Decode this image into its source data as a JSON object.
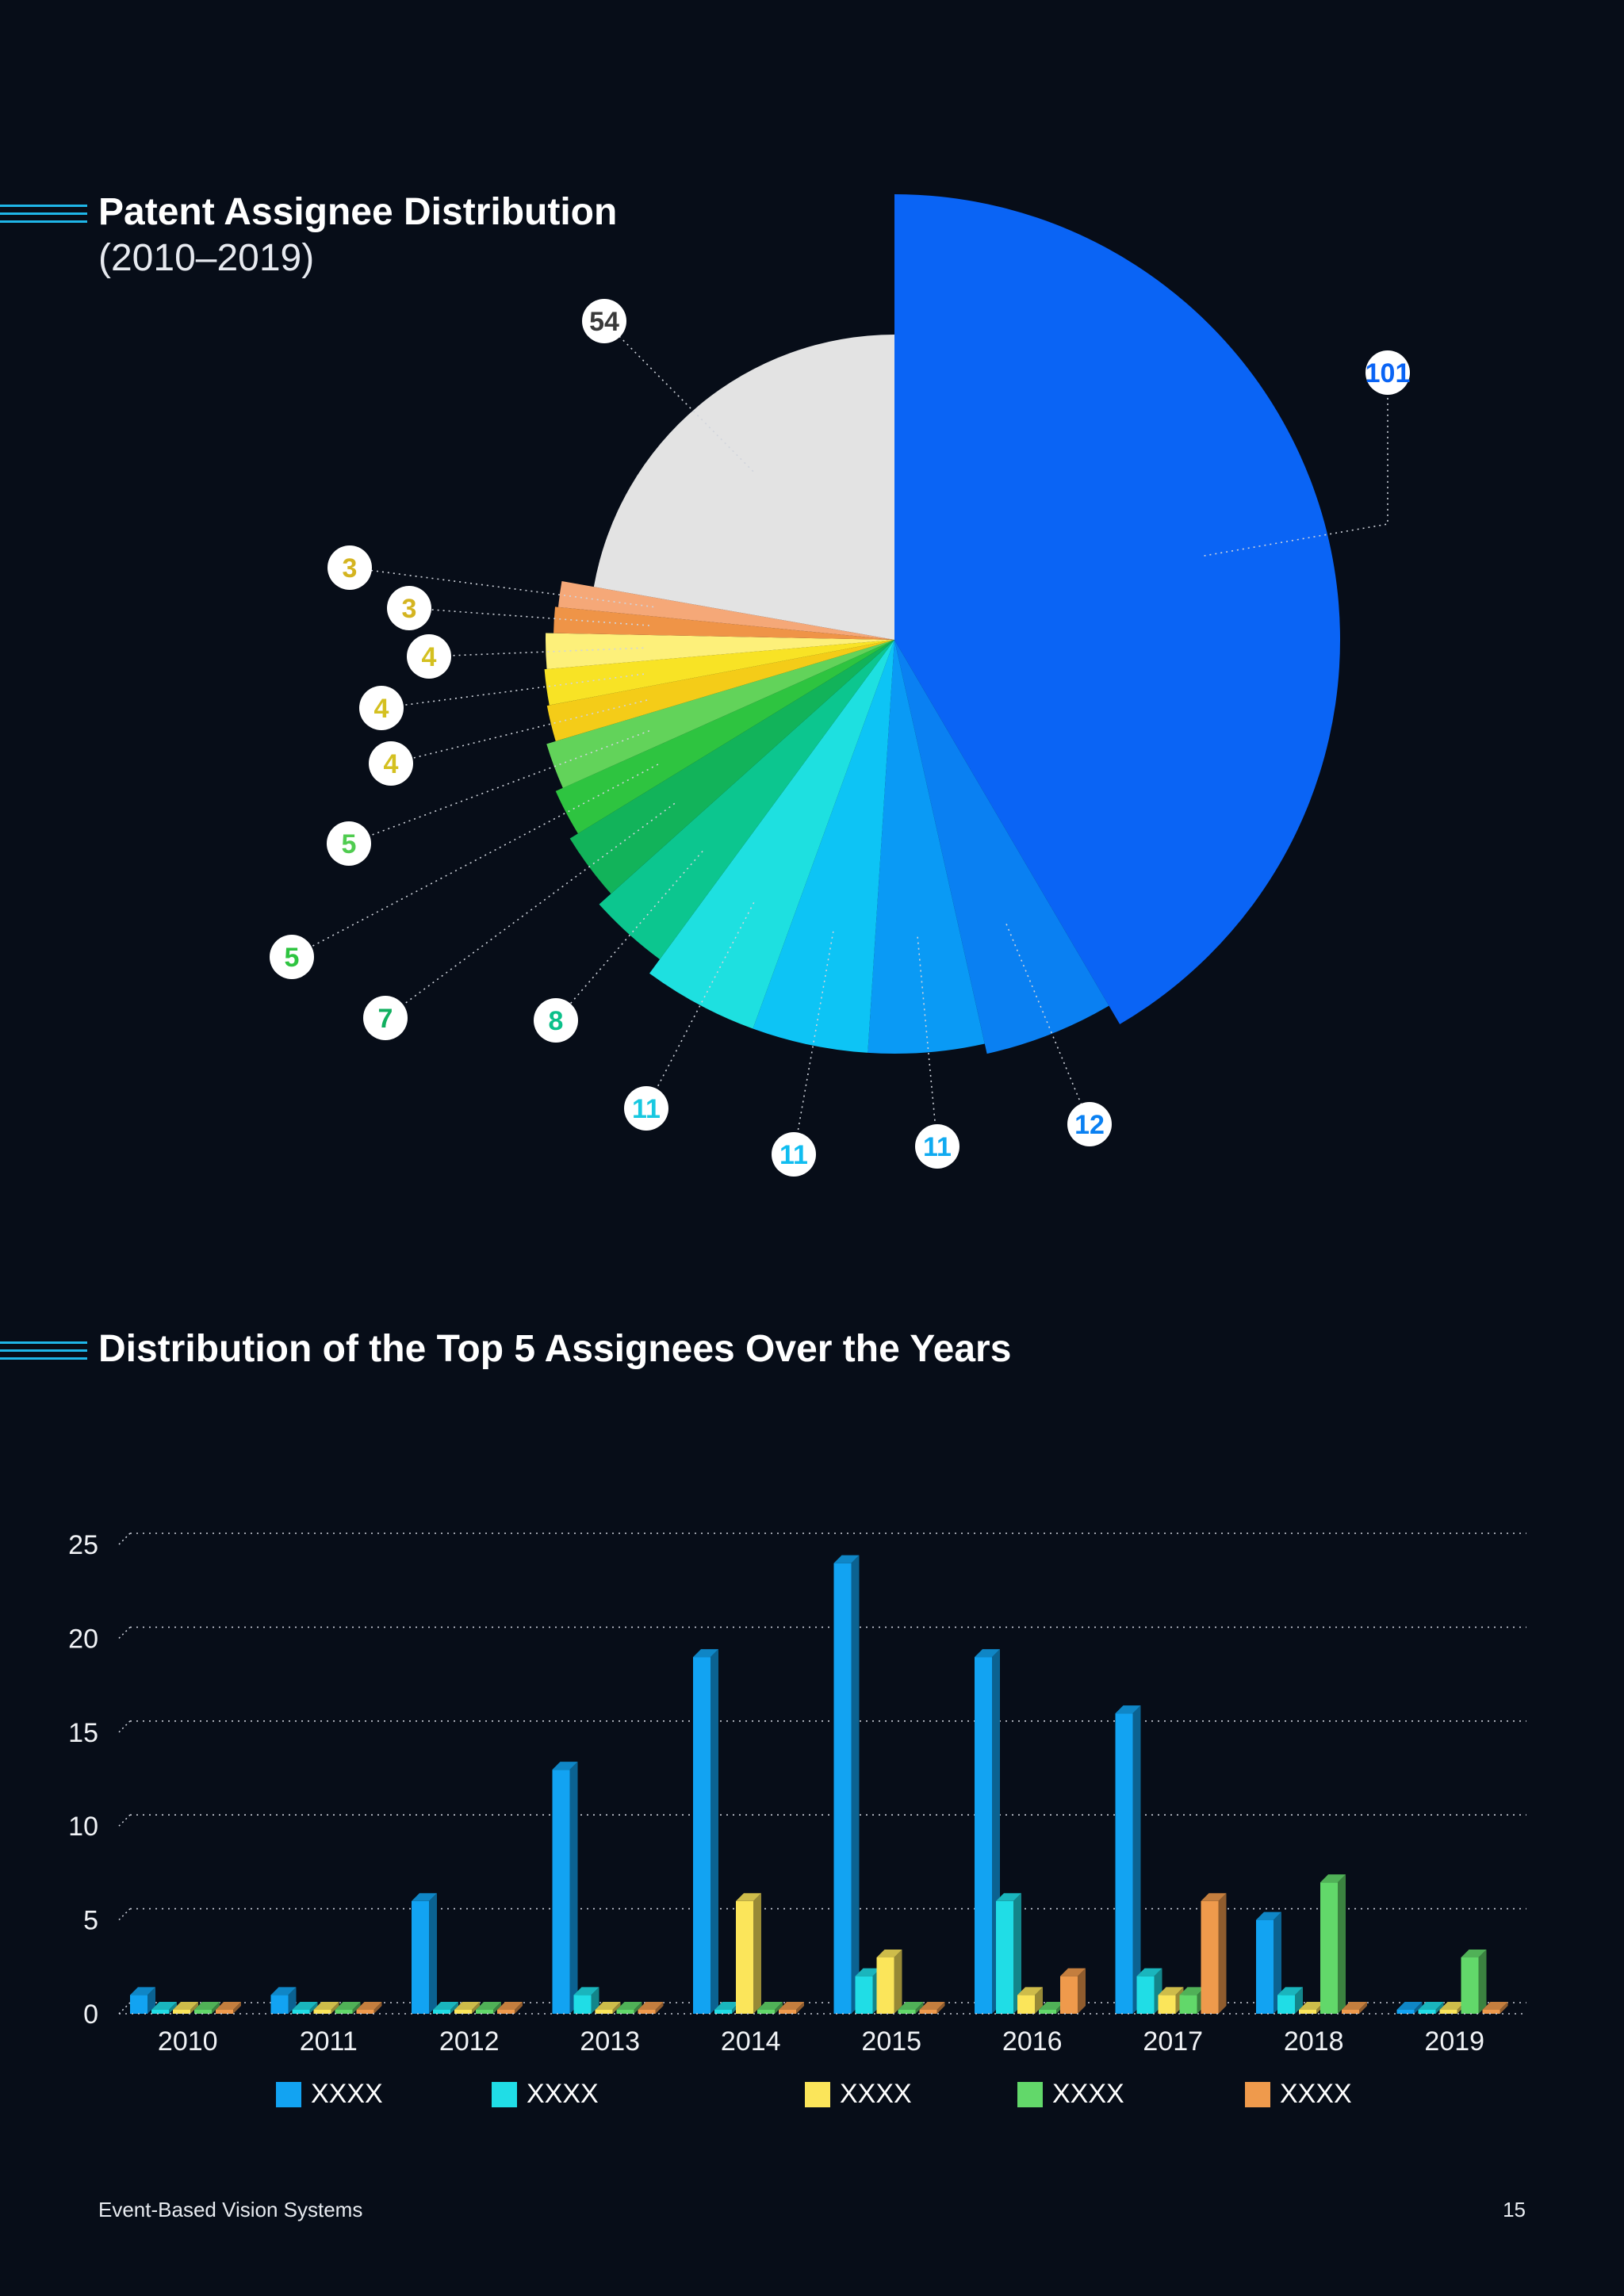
{
  "pie_section": {
    "title": "Patent Assignee Distribution",
    "subtitle": "(2010–2019)"
  },
  "bar_section": {
    "title": "Distribution of the Top 5 Assignees Over the Years"
  },
  "footer": {
    "left": "Event-Based Vision Systems",
    "right": "15"
  },
  "chart_data": [
    {
      "type": "pie",
      "title": "Patent Assignee Distribution",
      "slices": [
        {
          "label": "101",
          "value": 101,
          "color": "#0a64f5",
          "label_color": "#0a64f5"
        },
        {
          "label": "12",
          "value": 12,
          "color": "#0a80f2",
          "label_color": "#0a80f2"
        },
        {
          "label": "11",
          "value": 11,
          "color": "#0a9af5",
          "label_color": "#10aaf0"
        },
        {
          "label": "11",
          "value": 11,
          "color": "#0dc4f5",
          "label_color": "#10bdf0"
        },
        {
          "label": "11",
          "value": 11,
          "color": "#1ee0e0",
          "label_color": "#18c8e0"
        },
        {
          "label": "8",
          "value": 8,
          "color": "#0cc68f",
          "label_color": "#0cc08a"
        },
        {
          "label": "7",
          "value": 7,
          "color": "#12b35a",
          "label_color": "#12b060"
        },
        {
          "label": "5",
          "value": 5,
          "color": "#2ec440",
          "label_color": "#2ec440"
        },
        {
          "label": "5",
          "value": 5,
          "color": "#62d35a",
          "label_color": "#50cc50"
        },
        {
          "label": "4",
          "value": 4,
          "color": "#f4cc18",
          "label_color": "#d4c020"
        },
        {
          "label": "4",
          "value": 4,
          "color": "#f8e325",
          "label_color": "#d4c020"
        },
        {
          "label": "4",
          "value": 4,
          "color": "#fdf07a",
          "label_color": "#d4c020"
        },
        {
          "label": "3",
          "value": 3,
          "color": "#ef9447",
          "label_color": "#d4b420"
        },
        {
          "label": "3",
          "value": 3,
          "color": "#f5a878",
          "label_color": "#d4b420"
        },
        {
          "label": "54",
          "value": 54,
          "color": "#e3e3e3",
          "label_color": "#3a3a3a"
        }
      ]
    },
    {
      "type": "bar",
      "title": "Distribution of the Top 5 Assignees Over the Years",
      "categories": [
        "2010",
        "2011",
        "2012",
        "2013",
        "2014",
        "2015",
        "2016",
        "2017",
        "2018",
        "2019"
      ],
      "ylim": [
        0,
        25
      ],
      "yticks": [
        "0",
        "5",
        "10",
        "15",
        "20",
        "25"
      ],
      "grid": true,
      "legend_position": "bottom",
      "series": [
        {
          "name": "XXXX",
          "color": "#12a3f2",
          "values": [
            1,
            1,
            6,
            13,
            19,
            24,
            19,
            16,
            5,
            0
          ]
        },
        {
          "name": "XXXX",
          "color": "#20dde6",
          "values": [
            0,
            0,
            0,
            1,
            0,
            2,
            6,
            2,
            1,
            0
          ]
        },
        {
          "name": "XXXX",
          "color": "#fbe55a",
          "values": [
            0,
            0,
            0,
            0,
            6,
            3,
            1,
            1,
            0,
            0
          ]
        },
        {
          "name": "XXXX",
          "color": "#62d86a",
          "values": [
            0,
            0,
            0,
            0,
            0,
            0,
            0,
            1,
            7,
            3
          ]
        },
        {
          "name": "XXXX",
          "color": "#ef9a4c",
          "values": [
            0,
            0,
            0,
            0,
            0,
            0,
            2,
            6,
            0,
            0
          ]
        }
      ]
    }
  ]
}
